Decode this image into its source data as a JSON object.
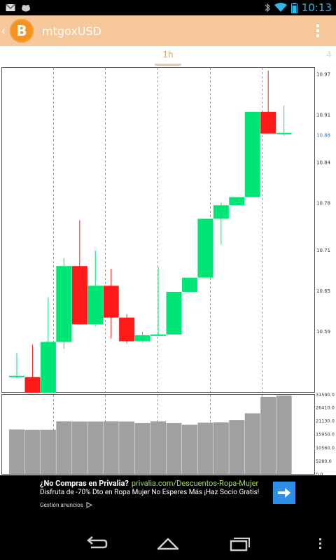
{
  "status_bar": {
    "time": "10:13",
    "icons": [
      "gmail-icon",
      "notification-icon",
      "bluetooth-icon",
      "wifi-icon",
      "battery-icon"
    ]
  },
  "action_bar": {
    "title": "mtgoxUSD",
    "logo_glyph": "B",
    "up_glyph": "‹",
    "brand_color": "#f6c79a",
    "logo_color": "#f7931a"
  },
  "tabs": {
    "active": "1h",
    "next_partial": "4"
  },
  "chart_data": [
    {
      "type": "candlestick",
      "ylim": [
        10.5,
        10.98
      ],
      "price_labels": [
        "10.97",
        "10.91",
        "10.88",
        "10.84",
        "10.78",
        "10.71",
        "10.65",
        "10.59"
      ],
      "current_price": "10.88",
      "up_color": "#00e676",
      "down_color": "#ff1a1a",
      "candles": [
        {
          "o": 10.524,
          "h": 10.558,
          "l": 10.52,
          "c": 10.524
        },
        {
          "o": 10.522,
          "h": 10.57,
          "l": 10.499,
          "c": 10.499
        },
        {
          "o": 10.499,
          "h": 10.64,
          "l": 10.499,
          "c": 10.574
        },
        {
          "o": 10.574,
          "h": 10.698,
          "l": 10.564,
          "c": 10.686
        },
        {
          "o": 10.686,
          "h": 10.754,
          "l": 10.6,
          "c": 10.6
        },
        {
          "o": 10.6,
          "h": 10.709,
          "l": 10.597,
          "c": 10.657
        },
        {
          "o": 10.657,
          "h": 10.682,
          "l": 10.579,
          "c": 10.61
        },
        {
          "o": 10.61,
          "h": 10.615,
          "l": 10.572,
          "c": 10.575
        },
        {
          "o": 10.575,
          "h": 10.589,
          "l": 10.573,
          "c": 10.584
        },
        {
          "o": 10.584,
          "h": 10.685,
          "l": 10.584,
          "c": 10.585
        },
        {
          "o": 10.585,
          "h": 10.648,
          "l": 10.585,
          "c": 10.648
        },
        {
          "o": 10.648,
          "h": 10.669,
          "l": 10.648,
          "c": 10.669
        },
        {
          "o": 10.669,
          "h": 10.756,
          "l": 10.669,
          "c": 10.756
        },
        {
          "o": 10.756,
          "h": 10.78,
          "l": 10.718,
          "c": 10.776
        },
        {
          "o": 10.776,
          "h": 10.788,
          "l": 10.776,
          "c": 10.788
        },
        {
          "o": 10.788,
          "h": 10.914,
          "l": 10.788,
          "c": 10.914
        },
        {
          "o": 10.914,
          "h": 10.975,
          "l": 10.882,
          "c": 10.882
        },
        {
          "o": 10.882,
          "h": 10.923,
          "l": 10.879,
          "c": 10.883
        }
      ]
    },
    {
      "type": "bar",
      "ylim": [
        0,
        31590
      ],
      "volume_labels": [
        "31590.0",
        "26410.0",
        "21130.0",
        "15950.0",
        "10560.0",
        "5280.0",
        "0.0"
      ],
      "values": [
        17600,
        17500,
        17500,
        20800,
        20700,
        20700,
        20800,
        20700,
        20200,
        20800,
        20200,
        19500,
        20300,
        20400,
        21300,
        24000,
        30500,
        31000
      ],
      "bar_color": "#a0a0a0"
    }
  ],
  "ad": {
    "title": "¿No Compras en Privalia?",
    "url": "privalia.com/Descuentos-Ropa-Mujer",
    "description": "Disfruta de -70% Dto en Ropa Mujer No Esperes Más ¡Haz Socio Gratis!",
    "manage_label": "Gestión anuncios",
    "arrow_color": "#2d8ee8"
  }
}
